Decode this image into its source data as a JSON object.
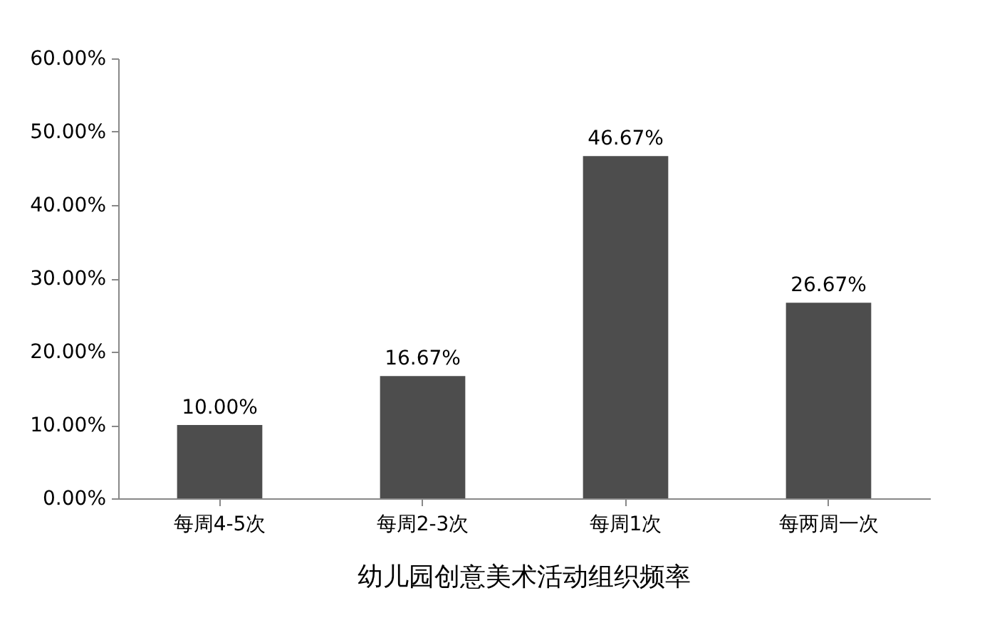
{
  "chart_data": {
    "type": "bar",
    "title": "幼儿园创意美术活动组织频率",
    "categories": [
      "每周4-5次",
      "每周2-3次",
      "每周1次",
      "每两周一次"
    ],
    "values": [
      10.0,
      16.67,
      46.67,
      26.67
    ],
    "value_labels": [
      "10.00%",
      "16.67%",
      "46.67%",
      "26.67%"
    ],
    "color": "#4d4d4d",
    "ylim": [
      0,
      60
    ],
    "yticks": [
      {
        "value": 0,
        "label": "0.00%"
      },
      {
        "value": 10,
        "label": "10.00%"
      },
      {
        "value": 20,
        "label": "20.00%"
      },
      {
        "value": 30,
        "label": "30.00%"
      },
      {
        "value": 40,
        "label": "40.00%"
      },
      {
        "value": 50,
        "label": "50.00%"
      },
      {
        "value": 60,
        "label": "60.00%"
      }
    ]
  }
}
